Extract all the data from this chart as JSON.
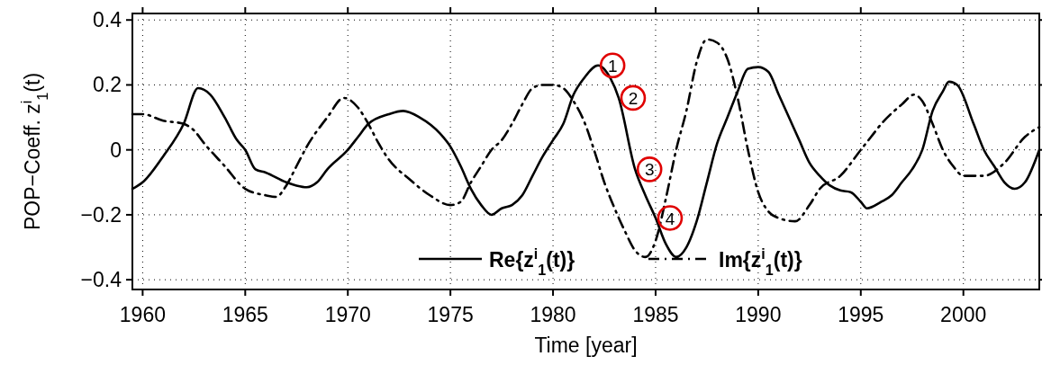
{
  "chart_data": {
    "type": "line",
    "xlabel": "Time [year]",
    "ylabel": "POP−Coeff.  z$^{i}$$_{1}$(t)",
    "xlim": [
      1959.5,
      2003.7
    ],
    "ylim": [
      -0.43,
      0.42
    ],
    "xticks": [
      1960,
      1965,
      1970,
      1975,
      1980,
      1985,
      1990,
      1995,
      2000
    ],
    "yticks": [
      {
        "value": -0.4,
        "label": "−0.4"
      },
      {
        "value": -0.2,
        "label": "−0.2"
      },
      0,
      0.2,
      0.4
    ],
    "grid": true,
    "legend": "bottom",
    "marker": "none",
    "series": [
      {
        "name": "Re{z$^{i}$$_{1}$(t)}",
        "color": "#000000",
        "line_style": "solid",
        "x": [
          1959.5,
          1960,
          1961,
          1962,
          1962.7,
          1963.3,
          1964,
          1964.6,
          1965,
          1965.5,
          1966,
          1967,
          1967.5,
          1968,
          1968.5,
          1969,
          1970,
          1970.5,
          1971,
          1972,
          1972.7,
          1973.5,
          1974.5,
          1975,
          1975.5,
          1976,
          1976.5,
          1977,
          1977.5,
          1978,
          1978.5,
          1979,
          1979.5,
          1980,
          1980.5,
          1981,
          1981.5,
          1982.2,
          1982.8,
          1983.2,
          1984,
          1984.5,
          1985,
          1985.5,
          1986,
          1986.5,
          1987,
          1987.5,
          1988,
          1988.5,
          1989,
          1989.5,
          1990,
          1990.5,
          1991,
          1991.5,
          1992,
          1992.5,
          1993,
          1993.5,
          1994,
          1994.5,
          1995,
          1995.3,
          1996,
          1996.5,
          1997,
          1997.5,
          1998,
          1998.5,
          1999,
          1999.3,
          1999.7,
          2000.5,
          2001,
          2001.5,
          2002,
          2002.5,
          2003,
          2003.7
        ],
        "values": [
          -0.12,
          -0.1,
          -0.02,
          0.08,
          0.19,
          0.17,
          0.1,
          0.03,
          0.0,
          -0.06,
          -0.07,
          -0.1,
          -0.11,
          -0.115,
          -0.1,
          -0.06,
          0.0,
          0.04,
          0.08,
          0.11,
          0.12,
          0.1,
          0.05,
          0.01,
          -0.05,
          -0.12,
          -0.17,
          -0.2,
          -0.18,
          -0.17,
          -0.14,
          -0.08,
          -0.02,
          0.03,
          0.08,
          0.17,
          0.22,
          0.26,
          0.22,
          0.16,
          -0.06,
          -0.14,
          -0.21,
          -0.29,
          -0.33,
          -0.3,
          -0.22,
          -0.1,
          0.02,
          0.1,
          0.18,
          0.25,
          0.255,
          0.24,
          0.17,
          0.1,
          0.03,
          -0.04,
          -0.08,
          -0.11,
          -0.125,
          -0.13,
          -0.16,
          -0.18,
          -0.16,
          -0.14,
          -0.1,
          -0.06,
          0.0,
          0.12,
          0.18,
          0.21,
          0.2,
          0.08,
          0.0,
          -0.05,
          -0.1,
          -0.12,
          -0.1,
          0.0
        ]
      },
      {
        "name": "Im{z$^{i}$$_{1}$(t)}",
        "color": "#000000",
        "line_style": "dashed",
        "x": [
          1959.5,
          1960,
          1961,
          1962,
          1962.5,
          1963,
          1964,
          1965,
          1966,
          1966.5,
          1967,
          1967.5,
          1968,
          1969,
          1969.8,
          1970.5,
          1971,
          1971.5,
          1972,
          1973,
          1974,
          1975,
          1975.5,
          1976,
          1976.5,
          1977,
          1977.5,
          1978,
          1978.5,
          1979,
          1979.5,
          1980,
          1980.5,
          1981,
          1981.5,
          1982,
          1982.5,
          1983,
          1983.5,
          1984,
          1984.5,
          1985,
          1985.5,
          1986,
          1986.5,
          1987,
          1987.5,
          1988,
          1988.5,
          1989,
          1989.5,
          1990,
          1990.5,
          1991,
          1991.8,
          1992.5,
          1993,
          1994,
          1995,
          1995.5,
          1996,
          1997,
          1997.6,
          1998,
          1998.5,
          1999,
          1999.5,
          2000,
          2001,
          2002,
          2003,
          2003.7
        ],
        "values": [
          0.11,
          0.11,
          0.09,
          0.08,
          0.06,
          0.02,
          -0.05,
          -0.12,
          -0.14,
          -0.145,
          -0.11,
          -0.05,
          0.01,
          0.1,
          0.16,
          0.13,
          0.08,
          0.02,
          -0.03,
          -0.09,
          -0.14,
          -0.17,
          -0.16,
          -0.1,
          -0.05,
          0.0,
          0.03,
          0.08,
          0.14,
          0.19,
          0.2,
          0.2,
          0.19,
          0.15,
          0.09,
          0.0,
          -0.1,
          -0.18,
          -0.25,
          -0.31,
          -0.33,
          -0.28,
          -0.15,
          0.0,
          0.12,
          0.27,
          0.34,
          0.33,
          0.28,
          0.16,
          0.0,
          -0.13,
          -0.19,
          -0.21,
          -0.22,
          -0.17,
          -0.12,
          -0.08,
          0.0,
          0.04,
          0.08,
          0.14,
          0.17,
          0.15,
          0.08,
          0.0,
          -0.05,
          -0.08,
          -0.08,
          -0.04,
          0.04,
          0.07
        ]
      }
    ],
    "annotations": [
      {
        "text": "1",
        "x": 1982.2,
        "y": 0.26
      },
      {
        "text": "2",
        "x": 1983.2,
        "y": 0.16
      },
      {
        "text": "3",
        "x": 1984,
        "y": -0.06
      },
      {
        "text": "4",
        "x": 1985,
        "y": -0.21
      }
    ]
  }
}
